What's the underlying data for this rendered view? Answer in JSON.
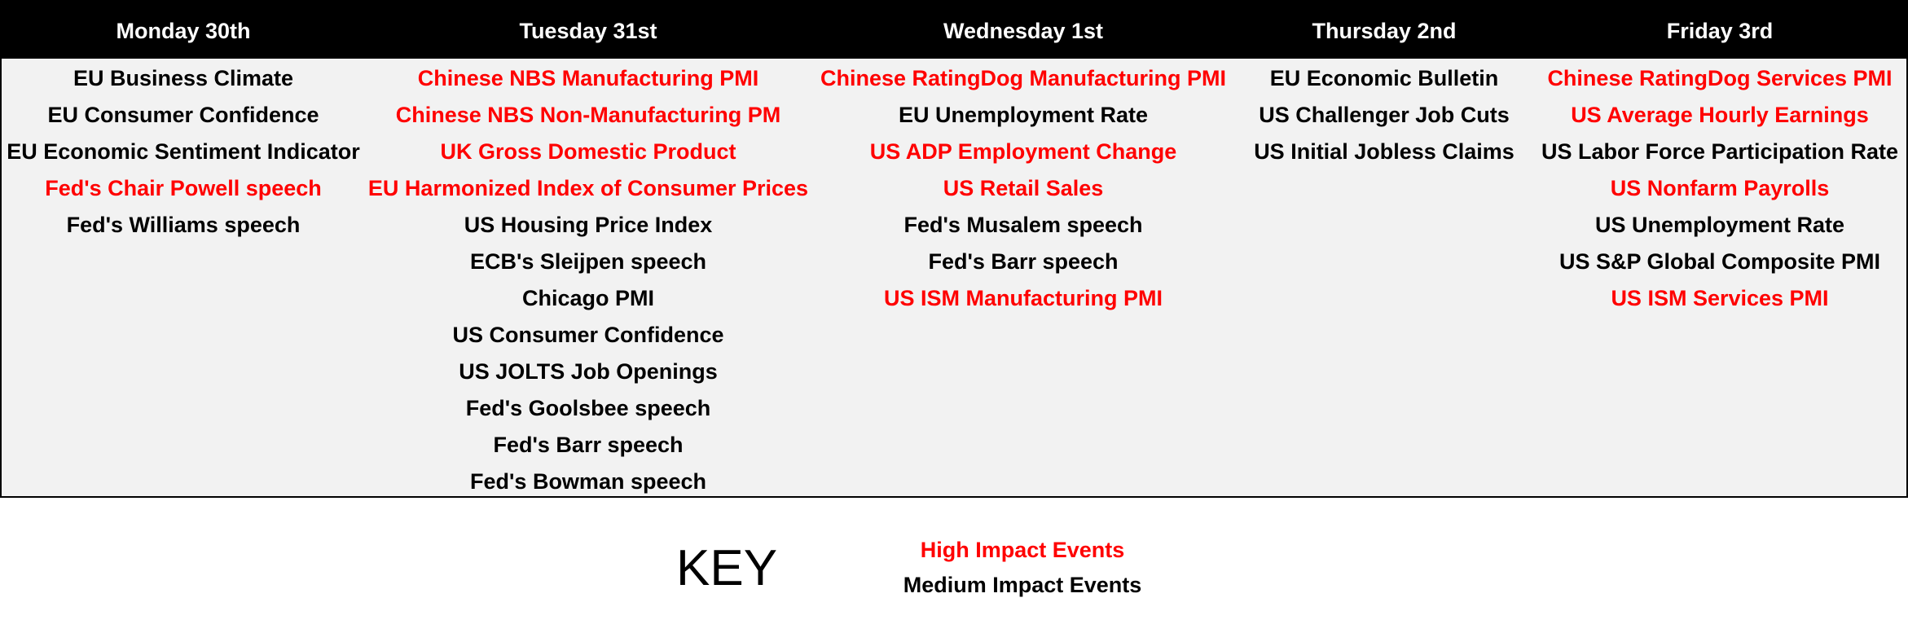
{
  "calendar": {
    "days": [
      {
        "label": "Monday 30th",
        "events": [
          {
            "text": "EU Business Climate",
            "impact": "medium"
          },
          {
            "text": "EU Consumer Confidence",
            "impact": "medium"
          },
          {
            "text": "EU Economic Sentiment Indicator",
            "impact": "medium"
          },
          {
            "text": "Fed's Chair Powell speech",
            "impact": "high"
          },
          {
            "text": "Fed's Williams speech",
            "impact": "medium"
          }
        ]
      },
      {
        "label": "Tuesday 31st",
        "events": [
          {
            "text": "Chinese NBS Manufacturing PMI",
            "impact": "high"
          },
          {
            "text": "Chinese NBS Non-Manufacturing PM",
            "impact": "high"
          },
          {
            "text": "UK Gross Domestic Product",
            "impact": "high"
          },
          {
            "text": "EU Harmonized Index of Consumer Prices",
            "impact": "high"
          },
          {
            "text": "US Housing Price Index",
            "impact": "medium"
          },
          {
            "text": "ECB's Sleijpen speech",
            "impact": "medium"
          },
          {
            "text": "Chicago PMI",
            "impact": "medium"
          },
          {
            "text": "US Consumer Confidence",
            "impact": "medium"
          },
          {
            "text": "US JOLTS Job Openings",
            "impact": "medium"
          },
          {
            "text": "Fed's Goolsbee speech",
            "impact": "medium"
          },
          {
            "text": "Fed's Barr speech",
            "impact": "medium"
          },
          {
            "text": "Fed's Bowman speech",
            "impact": "medium"
          }
        ]
      },
      {
        "label": "Wednesday 1st",
        "events": [
          {
            "text": "Chinese RatingDog Manufacturing PMI",
            "impact": "high"
          },
          {
            "text": "EU Unemployment Rate",
            "impact": "medium"
          },
          {
            "text": "US ADP Employment Change",
            "impact": "high"
          },
          {
            "text": "US Retail Sales",
            "impact": "high"
          },
          {
            "text": "Fed's Musalem speech",
            "impact": "medium"
          },
          {
            "text": "Fed's Barr speech",
            "impact": "medium"
          },
          {
            "text": "US ISM Manufacturing PMI",
            "impact": "high"
          }
        ]
      },
      {
        "label": "Thursday 2nd",
        "events": [
          {
            "text": "EU Economic Bulletin",
            "impact": "medium"
          },
          {
            "text": "US Challenger Job Cuts",
            "impact": "medium"
          },
          {
            "text": "US Initial Jobless Claims",
            "impact": "medium"
          }
        ]
      },
      {
        "label": "Friday 3rd",
        "events": [
          {
            "text": "Chinese RatingDog Services PMI",
            "impact": "high"
          },
          {
            "text": "US Average Hourly Earnings",
            "impact": "high"
          },
          {
            "text": "US Labor Force Participation Rate",
            "impact": "medium"
          },
          {
            "text": "US Nonfarm Payrolls",
            "impact": "high"
          },
          {
            "text": "US Unemployment Rate",
            "impact": "medium"
          },
          {
            "text": "US S&P Global Composite PMI",
            "impact": "medium"
          },
          {
            "text": "US ISM Services PMI",
            "impact": "high"
          }
        ]
      }
    ]
  },
  "key": {
    "title": "KEY",
    "high_label": "High Impact Events",
    "medium_label": "Medium Impact Events"
  },
  "colors": {
    "high": "#ff0000",
    "medium": "#000000",
    "header_bg": "#000000",
    "body_bg": "#f2f2f2"
  }
}
